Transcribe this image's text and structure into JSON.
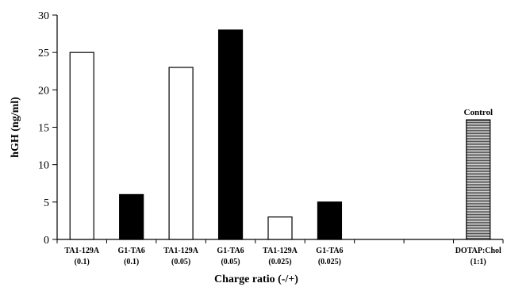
{
  "chart_data": {
    "type": "bar",
    "title": "",
    "xlabel": "Charge ratio (-/+)",
    "ylabel": "hGH (ng/ml)",
    "ylim": [
      0,
      30
    ],
    "yticks": [
      0,
      5,
      10,
      15,
      20,
      25,
      30
    ],
    "grid": false,
    "legend": "none",
    "slots": 9,
    "categories": [
      {
        "line1": "TA1-129A",
        "line2": "(0.1)",
        "value": 25,
        "fill": "white",
        "slot": 0
      },
      {
        "line1": "G1-TA6",
        "line2": "(0.1)",
        "value": 6,
        "fill": "black",
        "slot": 1
      },
      {
        "line1": "TA1-129A",
        "line2": "(0.05)",
        "value": 23,
        "fill": "white",
        "slot": 2
      },
      {
        "line1": "G1-TA6",
        "line2": "(0.05)",
        "value": 28,
        "fill": "black",
        "slot": 3
      },
      {
        "line1": "TA1-129A",
        "line2": "(0.025)",
        "value": 3,
        "fill": "white",
        "slot": 4
      },
      {
        "line1": "G1-TA6",
        "line2": "(0.025)",
        "value": 5,
        "fill": "black",
        "slot": 5
      },
      {
        "line1": "DOTAP:Chol",
        "line2": "(1:1)",
        "value": 16,
        "fill": "hatched",
        "slot": 8
      }
    ],
    "annotations": [
      {
        "text": "Control",
        "category_slot": 8
      }
    ]
  }
}
